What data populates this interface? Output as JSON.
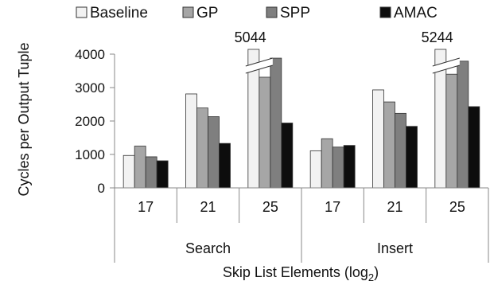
{
  "chart_data": {
    "type": "bar",
    "title": "",
    "ylabel": "Cycles per Output Tuple",
    "xlabel_main": "Skip List Elements (log",
    "xlabel_sub": "2",
    "xlabel_close": ")",
    "ylim": [
      0,
      4000
    ],
    "yticks": [
      "0",
      "1000",
      "2000",
      "3000",
      "4000"
    ],
    "ytick_values": [
      0,
      1000,
      2000,
      3000,
      4000
    ],
    "groups": [
      {
        "label": "Search",
        "categories": [
          "17",
          "21",
          "25"
        ]
      },
      {
        "label": "Insert",
        "categories": [
          "17",
          "21",
          "25"
        ]
      }
    ],
    "series": [
      {
        "name": "Baseline",
        "color": "#f2f2f2",
        "values": [
          970,
          2810,
          5044,
          1110,
          2930,
          5244
        ]
      },
      {
        "name": "GP",
        "color": "#a6a6a6",
        "values": [
          1250,
          2390,
          3310,
          1470,
          2570,
          3400
        ]
      },
      {
        "name": "SPP",
        "color": "#7f7f7f",
        "values": [
          930,
          2130,
          3880,
          1220,
          2230,
          3790
        ]
      },
      {
        "name": "AMAC",
        "color": "#0d0d0d",
        "values": [
          810,
          1330,
          1940,
          1270,
          1840,
          2430
        ]
      }
    ],
    "breaks": [
      {
        "category_index": 2,
        "label": "5044"
      },
      {
        "category_index": 5,
        "label": "5244"
      }
    ],
    "legend_position": "top",
    "grid": false
  }
}
